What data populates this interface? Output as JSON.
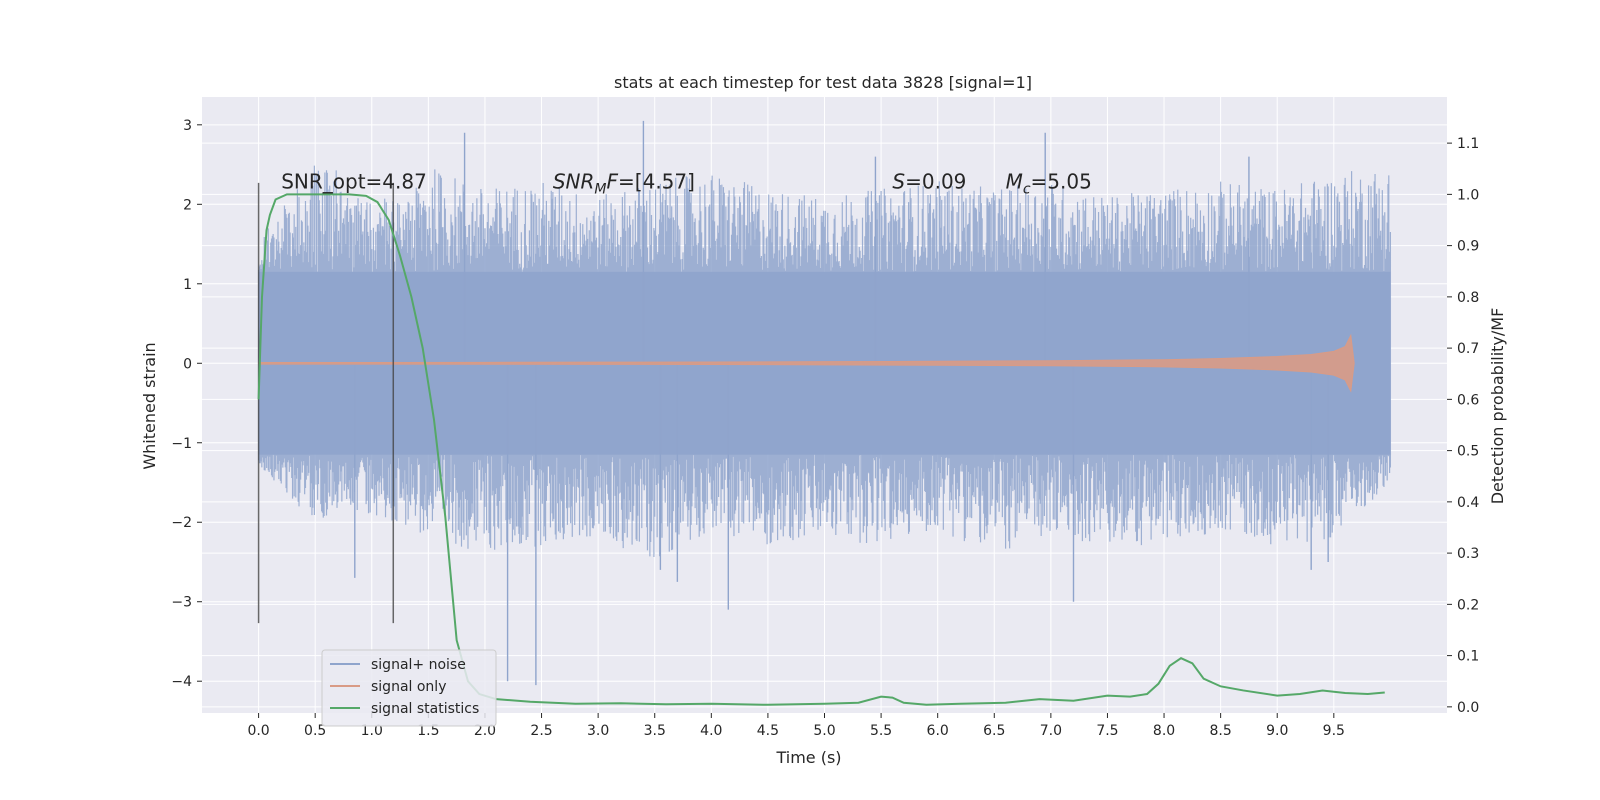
{
  "chart_data": {
    "type": "line",
    "title": "stats at each timestep for test data 3828 [signal=1]",
    "xlabel": "Time (s)",
    "ylabel": "Whitened strain",
    "ylabel_right": "Detection probability/MF",
    "xlim": [
      -0.5,
      10.5
    ],
    "ylim": [
      -4.4,
      3.35
    ],
    "ylim_right": [
      -0.012,
      1.19
    ],
    "x_ticks": [
      0.0,
      0.5,
      1.0,
      1.5,
      2.0,
      2.5,
      3.0,
      3.5,
      4.0,
      4.5,
      5.0,
      5.5,
      6.0,
      6.5,
      7.0,
      7.5,
      8.0,
      8.5,
      9.0,
      9.5
    ],
    "x_tick_labels": [
      "0.0",
      "0.5",
      "1.0",
      "1.5",
      "2.0",
      "2.5",
      "3.0",
      "3.5",
      "4.0",
      "4.5",
      "5.0",
      "5.5",
      "6.0",
      "6.5",
      "7.0",
      "7.5",
      "8.0",
      "8.5",
      "9.0",
      "9.5"
    ],
    "y_ticks": [
      3,
      2,
      1,
      0,
      -1,
      -2,
      -3,
      -4
    ],
    "y_tick_labels": [
      "3",
      "2",
      "1",
      "0",
      "−1",
      "−2",
      "−3",
      "−4"
    ],
    "y_right_ticks": [
      1.1,
      1.0,
      0.9,
      0.8,
      0.7,
      0.6,
      0.5,
      0.4,
      0.3,
      0.2,
      0.1,
      0.0
    ],
    "y_right_tick_labels": [
      "1.1",
      "1.0",
      "0.9",
      "0.8",
      "0.7",
      "0.6",
      "0.5",
      "0.4",
      "0.3",
      "0.2",
      "0.1",
      "0.0"
    ],
    "grid": true,
    "legend_position": "lower-left",
    "annotations": [
      {
        "key": "snr_opt",
        "text": "SNR_opt=4.87",
        "x": 0.2,
        "y": 2.2
      },
      {
        "key": "snr_mf",
        "text": "=[4.57]",
        "italic_prefix": "SNR",
        "sub": "M",
        "suffix_italic": "F",
        "x": 2.6,
        "y": 2.2
      },
      {
        "key": "s_value",
        "text": "=0.09",
        "italic_prefix": "S",
        "x": 5.6,
        "y": 2.2
      },
      {
        "key": "mc_value",
        "text": "=5.05",
        "italic_prefix": "M",
        "sub": "c",
        "x": 6.6,
        "y": 2.2
      }
    ],
    "vlines": [
      {
        "x": 0.0,
        "ymin": -3.27,
        "ymax": 2.27
      },
      {
        "x": 1.19,
        "ymin": -3.27,
        "ymax": 2.27
      }
    ],
    "series": [
      {
        "name": "signal+ noise",
        "color": "#8fa4cc",
        "axis": "left",
        "x_range": [
          0.0,
          10.0
        ],
        "envelope_upper": [
          1.5,
          2.7,
          2.0,
          2.5,
          2.2,
          2.3,
          2.1,
          2.3,
          2.4,
          2.2,
          2.1,
          2.2,
          2.3,
          2.2,
          2.3,
          2.1,
          2.2,
          2.3,
          2.2,
          2.4,
          2.5
        ],
        "envelope_lower": [
          -1.3,
          -2.0,
          -1.9,
          -2.2,
          -2.4,
          -2.3,
          -2.2,
          -2.5,
          -2.1,
          -2.3,
          -2.2,
          -2.3,
          -2.1,
          -2.4,
          -2.2,
          -2.3,
          -2.3,
          -2.1,
          -2.3,
          -2.2,
          -1.5
        ],
        "spikes": [
          {
            "x": 1.82,
            "y": 2.9
          },
          {
            "x": 3.4,
            "y": 3.05
          },
          {
            "x": 3.55,
            "y": -2.6
          },
          {
            "x": 6.95,
            "y": 2.9
          },
          {
            "x": 2.45,
            "y": -4.05
          },
          {
            "x": 2.2,
            "y": -4.0
          },
          {
            "x": 3.7,
            "y": -2.75
          },
          {
            "x": 4.15,
            "y": -3.1
          },
          {
            "x": 7.2,
            "y": -3.0
          },
          {
            "x": 9.3,
            "y": -2.6
          },
          {
            "x": 9.45,
            "y": -2.5
          },
          {
            "x": 5.45,
            "y": 2.6
          },
          {
            "x": 8.75,
            "y": 2.6
          },
          {
            "x": 0.85,
            "y": -2.7
          }
        ]
      },
      {
        "name": "signal only",
        "color": "#d99b86",
        "axis": "left",
        "x": [
          0.0,
          1.0,
          2.0,
          3.0,
          4.0,
          5.0,
          6.0,
          7.0,
          8.0,
          8.5,
          9.0,
          9.3,
          9.5,
          9.6,
          9.65,
          9.68
        ],
        "amplitude": [
          0.01,
          0.01,
          0.012,
          0.014,
          0.016,
          0.02,
          0.025,
          0.032,
          0.045,
          0.06,
          0.085,
          0.11,
          0.15,
          0.21,
          0.35,
          0.0
        ]
      },
      {
        "name": "signal statistics",
        "color": "#55a868",
        "axis": "right",
        "x": [
          0.0,
          0.03,
          0.07,
          0.1,
          0.15,
          0.25,
          0.4,
          0.6,
          0.8,
          0.95,
          1.05,
          1.15,
          1.25,
          1.35,
          1.45,
          1.55,
          1.65,
          1.75,
          1.85,
          1.95,
          2.1,
          2.4,
          2.8,
          3.2,
          3.6,
          4.0,
          4.5,
          5.0,
          5.3,
          5.5,
          5.6,
          5.7,
          5.9,
          6.2,
          6.6,
          6.9,
          7.2,
          7.5,
          7.7,
          7.85,
          7.95,
          8.05,
          8.15,
          8.25,
          8.35,
          8.5,
          8.7,
          9.0,
          9.2,
          9.4,
          9.6,
          9.8,
          9.95
        ],
        "values": [
          0.6,
          0.8,
          0.93,
          0.96,
          0.99,
          1.0,
          1.0,
          1.0,
          1.0,
          0.997,
          0.985,
          0.95,
          0.88,
          0.8,
          0.7,
          0.56,
          0.37,
          0.13,
          0.05,
          0.025,
          0.015,
          0.01,
          0.006,
          0.007,
          0.005,
          0.006,
          0.004,
          0.006,
          0.008,
          0.02,
          0.018,
          0.008,
          0.004,
          0.006,
          0.008,
          0.015,
          0.012,
          0.022,
          0.02,
          0.025,
          0.045,
          0.08,
          0.095,
          0.085,
          0.055,
          0.04,
          0.032,
          0.022,
          0.025,
          0.032,
          0.027,
          0.025,
          0.028
        ]
      }
    ]
  }
}
